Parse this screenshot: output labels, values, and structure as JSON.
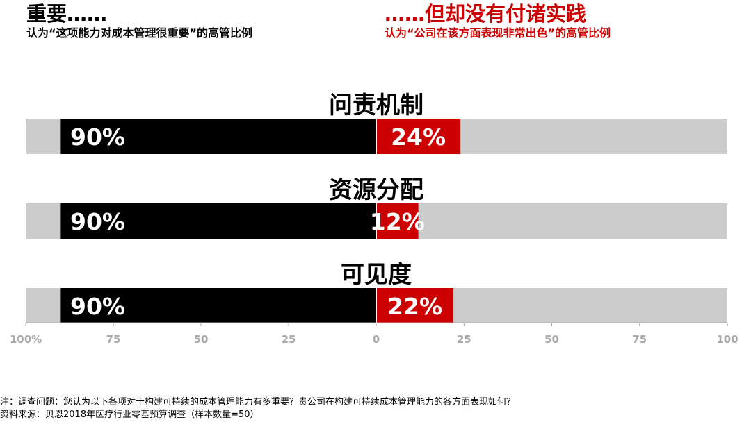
{
  "header_left": {
    "title": "重要……",
    "subtitle": "认为“这项能力对成本管理很重要”的高管比例"
  },
  "header_right": {
    "title": "……但却没有付诸实践",
    "subtitle": "认为“公司在该方面表现非常出色”的高管比例"
  },
  "chart_data": {
    "type": "bar",
    "orientation": "horizontal-diverging",
    "categories": [
      "问责机制",
      "资源分配",
      "可见度"
    ],
    "series": [
      {
        "values": [
          90,
          90,
          90
        ],
        "labels": [
          "90%",
          "90%",
          "90%"
        ],
        "color": "#000000",
        "side": "left"
      },
      {
        "values": [
          24,
          12,
          22
        ],
        "labels": [
          "24%",
          "12%",
          "22%"
        ],
        "color": "#cc0000",
        "side": "right"
      }
    ],
    "background_color": "#cccccc",
    "ticks_left": [
      "100%",
      "75",
      "50",
      "25"
    ],
    "ticks_right": [
      "0",
      "25",
      "50",
      "75",
      "100"
    ],
    "tick_values_left": [
      100,
      75,
      50,
      25
    ],
    "tick_values_right": [
      0,
      25,
      50,
      75,
      100
    ],
    "xlim": [
      0,
      100
    ],
    "tick_color": "#aaaaaa"
  },
  "notes": {
    "question": "注：调查问题：您认为以下各项对于构建可持续的成本管理能力有多重要？贵公司在构建可持续成本管理能力的各方面表现如何？",
    "source": "资料来源：贝恩2018年医疗行业零基预算调查（样本数量=50）"
  }
}
